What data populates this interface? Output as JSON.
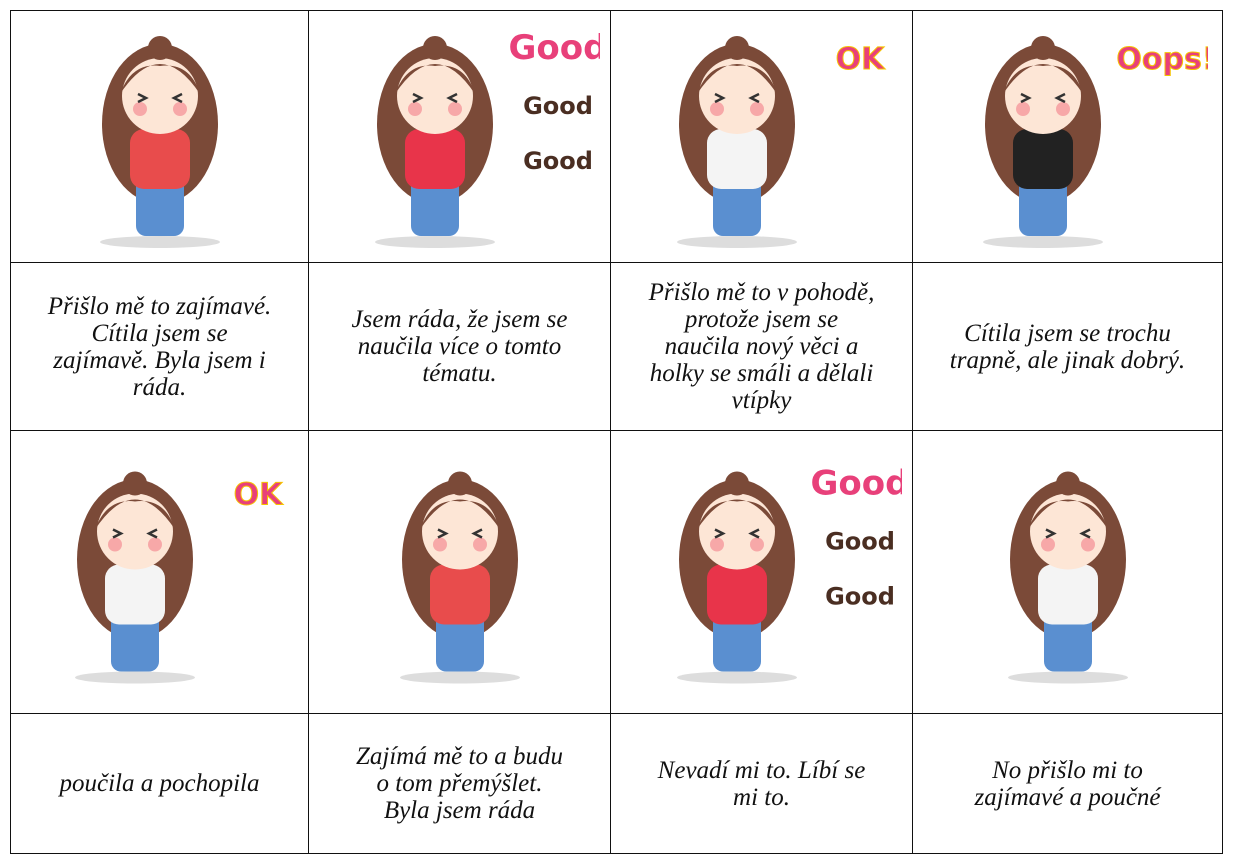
{
  "table": {
    "rows": [
      {
        "cells": [
          {
            "sticker": []
          },
          {
            "sticker": [
              "Good",
              "Good",
              "Good"
            ]
          },
          {
            "sticker": [
              "OK"
            ]
          },
          {
            "sticker": [
              "Oops!"
            ]
          }
        ]
      },
      {
        "cells": [
          {
            "lines": [
              "Přišlo mě to zajímavé.",
              "Cítila jsem se",
              "zajímavě. Byla jsem i",
              "ráda."
            ]
          },
          {
            "lines": [
              "Jsem ráda, že jsem se",
              "naučila více o tomto",
              "tématu."
            ]
          },
          {
            "lines": [
              "Přišlo mě to v pohodě,",
              "protože jsem se",
              "naučila nový věci a",
              "holky se smáli a dělali",
              "vtípky"
            ]
          },
          {
            "lines": [
              "Cítila jsem se trochu",
              "trapně, ale jinak dobrý."
            ]
          }
        ]
      },
      {
        "cells": [
          {
            "sticker": [
              "OK"
            ]
          },
          {
            "sticker": []
          },
          {
            "sticker": [
              "Good",
              "Good",
              "Good"
            ]
          },
          {
            "sticker": []
          }
        ]
      },
      {
        "cells": [
          {
            "lines": [
              "poučila a pochopila"
            ]
          },
          {
            "lines": [
              "Zajímá mě to a budu",
              "o tom přemýšlet.",
              "Byla jsem ráda"
            ]
          },
          {
            "lines": [
              "Nevadí mi to. Líbí se",
              "mi to."
            ]
          },
          {
            "lines": [
              "No přišlo mi to",
              "zajímavé a poučné"
            ]
          }
        ]
      }
    ]
  }
}
